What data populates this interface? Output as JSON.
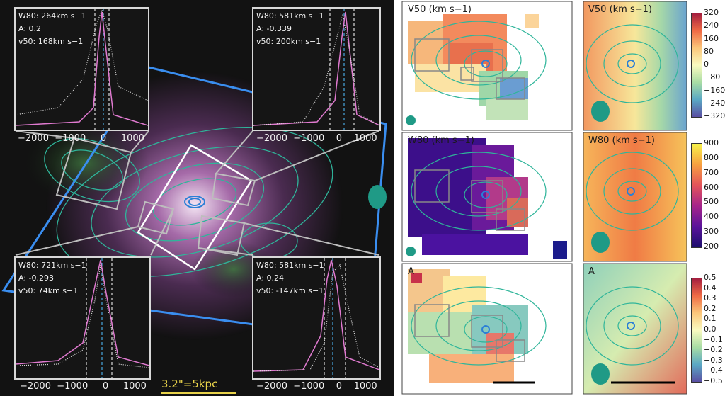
{
  "figure": {
    "scale_bar_label": "3.2\"=5kpc",
    "insets": [
      {
        "id": "top-left",
        "w80": "W80: 264km s−1",
        "A": "A: 0.2",
        "v50": "v50: 168km s−1",
        "xticks": [
          "−2000",
          "−1000",
          "0",
          "1000"
        ]
      },
      {
        "id": "top-right",
        "w80": "W80: 581km s−1",
        "A": "A: -0.339",
        "v50": "v50: 200km s−1",
        "xticks": [
          "−2000",
          "−1000",
          "0",
          "1000"
        ]
      },
      {
        "id": "bottom-left",
        "w80": "W80: 721km s−1",
        "A": "A: -0.293",
        "v50": "v50: 74km s−1",
        "xticks": [
          "−2000",
          "−1000",
          "0",
          "1000"
        ]
      },
      {
        "id": "bottom-right",
        "w80": "W80: 581km s−1",
        "A": "A: 0.24",
        "v50": "v50: -147km s−1",
        "xticks": [
          "−2000",
          "−1000",
          "0",
          "1000"
        ]
      }
    ],
    "maps": {
      "row1_title": "V50 (km s−1)",
      "row2_title": "W80 (km s−1)",
      "row3_title": "A"
    },
    "colorbars": [
      {
        "ticks": [
          "320",
          "240",
          "160",
          "80",
          "0",
          "−80",
          "−160",
          "−240",
          "−320"
        ]
      },
      {
        "ticks": [
          "900",
          "800",
          "700",
          "600",
          "500",
          "400",
          "300",
          "200"
        ]
      },
      {
        "ticks": [
          "0.5",
          "0.4",
          "0.3",
          "0.2",
          "0.1",
          "0.0",
          "−0.1",
          "−0.2",
          "−0.3",
          "−0.4",
          "−0.5"
        ]
      }
    ]
  }
}
